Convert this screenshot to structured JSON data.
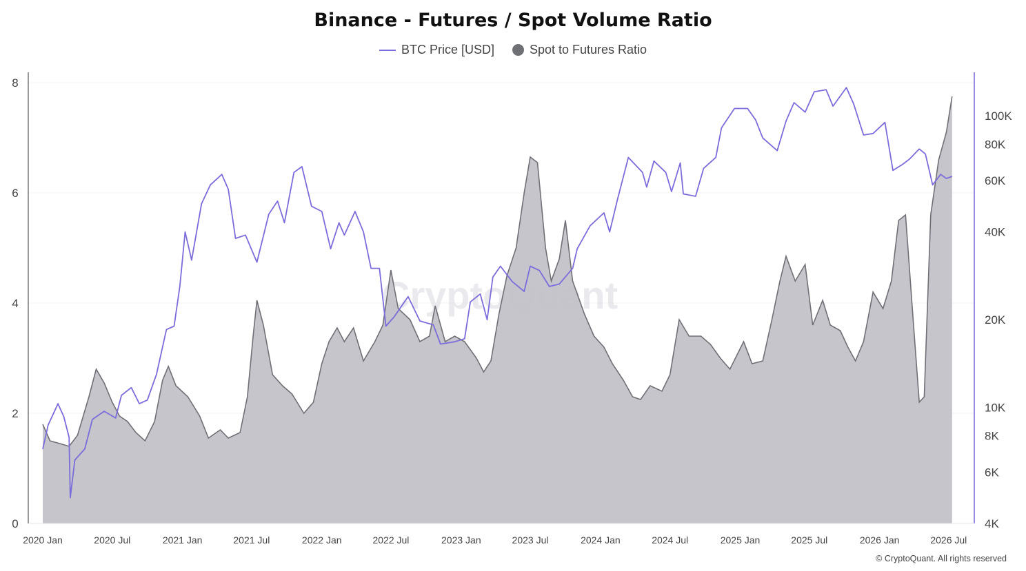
{
  "chart_data": {
    "type": "area",
    "title": "Binance - Futures / Spot Volume Ratio",
    "legend_position": "top-center",
    "grid": true,
    "watermark": "CryptoQuant",
    "credit": "© CryptoQuant. All rights reserved",
    "colors": {
      "price": "#7b6cdb",
      "ratio_fill": "#c3c2c8",
      "ratio_line": "#6f6f76"
    },
    "x_ticks": [
      "2020 Jan",
      "2020 Jul",
      "2021 Jan",
      "2021 Jul",
      "2022 Jan",
      "2022 Jul",
      "2023 Jan",
      "2023 Jul",
      "2024 Jan",
      "2024 Jul",
      "2025 Jan",
      "2025 Jul",
      "2026 Jan",
      "2026 Jul"
    ],
    "y_left": {
      "ticks": [
        "0",
        "2",
        "4",
        "6",
        "8"
      ],
      "range": [
        0,
        8
      ]
    },
    "y_right": {
      "scale": "log",
      "ticks": [
        4000,
        6000,
        8000,
        10000,
        20000,
        40000,
        60000,
        80000,
        100000
      ],
      "tick_labels": [
        "4K",
        "6K",
        "8K",
        "10K",
        "20K",
        "40K",
        "60K",
        "80K",
        "100K"
      ],
      "range": [
        4000,
        130000
      ]
    },
    "x_range": [
      "2020-01-01",
      "2026-08-01"
    ],
    "series": [
      {
        "name": "Spot to Futures Ratio",
        "axis": "left",
        "kind": "area",
        "points": [
          [
            "2020-01-01",
            1.8
          ],
          [
            "2020-01-20",
            1.5
          ],
          [
            "2020-02-15",
            1.45
          ],
          [
            "2020-03-10",
            1.4
          ],
          [
            "2020-04-01",
            1.6
          ],
          [
            "2020-05-01",
            2.3
          ],
          [
            "2020-05-20",
            2.8
          ],
          [
            "2020-06-10",
            2.55
          ],
          [
            "2020-07-01",
            2.2
          ],
          [
            "2020-07-20",
            1.95
          ],
          [
            "2020-08-10",
            1.85
          ],
          [
            "2020-09-01",
            1.65
          ],
          [
            "2020-09-25",
            1.5
          ],
          [
            "2020-10-20",
            1.85
          ],
          [
            "2020-11-10",
            2.6
          ],
          [
            "2020-11-25",
            2.85
          ],
          [
            "2020-12-15",
            2.5
          ],
          [
            "2021-01-15",
            2.3
          ],
          [
            "2021-02-15",
            1.95
          ],
          [
            "2021-03-10",
            1.55
          ],
          [
            "2021-04-10",
            1.7
          ],
          [
            "2021-05-01",
            1.55
          ],
          [
            "2021-06-01",
            1.65
          ],
          [
            "2021-06-20",
            2.3
          ],
          [
            "2021-07-05",
            3.4
          ],
          [
            "2021-07-15",
            4.05
          ],
          [
            "2021-08-01",
            3.6
          ],
          [
            "2021-08-25",
            2.7
          ],
          [
            "2021-09-20",
            2.5
          ],
          [
            "2021-10-15",
            2.35
          ],
          [
            "2021-11-15",
            2.0
          ],
          [
            "2021-12-10",
            2.2
          ],
          [
            "2022-01-01",
            2.9
          ],
          [
            "2022-01-20",
            3.3
          ],
          [
            "2022-02-10",
            3.55
          ],
          [
            "2022-03-01",
            3.3
          ],
          [
            "2022-03-25",
            3.55
          ],
          [
            "2022-04-20",
            2.95
          ],
          [
            "2022-05-20",
            3.3
          ],
          [
            "2022-06-10",
            3.6
          ],
          [
            "2022-07-01",
            4.6
          ],
          [
            "2022-07-20",
            3.9
          ],
          [
            "2022-08-20",
            3.7
          ],
          [
            "2022-09-15",
            3.3
          ],
          [
            "2022-10-10",
            3.4
          ],
          [
            "2022-10-25",
            3.95
          ],
          [
            "2022-11-20",
            3.3
          ],
          [
            "2022-12-15",
            3.4
          ],
          [
            "2023-01-10",
            3.3
          ],
          [
            "2023-02-10",
            3.0
          ],
          [
            "2023-03-01",
            2.75
          ],
          [
            "2023-03-20",
            2.95
          ],
          [
            "2023-04-10",
            3.8
          ],
          [
            "2023-05-01",
            4.5
          ],
          [
            "2023-05-25",
            5.0
          ],
          [
            "2023-06-15",
            6.0
          ],
          [
            "2023-07-01",
            6.65
          ],
          [
            "2023-07-20",
            6.55
          ],
          [
            "2023-08-10",
            5.0
          ],
          [
            "2023-08-25",
            4.4
          ],
          [
            "2023-09-15",
            4.8
          ],
          [
            "2023-10-01",
            5.5
          ],
          [
            "2023-10-20",
            4.4
          ],
          [
            "2023-11-20",
            3.8
          ],
          [
            "2023-12-15",
            3.4
          ],
          [
            "2024-01-10",
            3.2
          ],
          [
            "2024-02-01",
            2.9
          ],
          [
            "2024-03-01",
            2.6
          ],
          [
            "2024-03-25",
            2.3
          ],
          [
            "2024-04-15",
            2.25
          ],
          [
            "2024-05-10",
            2.5
          ],
          [
            "2024-06-10",
            2.4
          ],
          [
            "2024-07-01",
            2.7
          ],
          [
            "2024-07-25",
            3.7
          ],
          [
            "2024-08-20",
            3.4
          ],
          [
            "2024-09-20",
            3.4
          ],
          [
            "2024-10-15",
            3.25
          ],
          [
            "2024-11-10",
            3.0
          ],
          [
            "2024-12-05",
            2.8
          ],
          [
            "2025-01-10",
            3.3
          ],
          [
            "2025-02-01",
            2.9
          ],
          [
            "2025-03-01",
            2.95
          ],
          [
            "2025-03-25",
            3.7
          ],
          [
            "2025-04-15",
            4.4
          ],
          [
            "2025-05-01",
            4.85
          ],
          [
            "2025-05-25",
            4.4
          ],
          [
            "2025-06-20",
            4.7
          ],
          [
            "2025-07-10",
            3.6
          ],
          [
            "2025-08-05",
            4.05
          ],
          [
            "2025-08-25",
            3.6
          ],
          [
            "2025-09-20",
            3.5
          ],
          [
            "2025-10-10",
            3.2
          ],
          [
            "2025-10-30",
            2.95
          ],
          [
            "2025-11-20",
            3.3
          ],
          [
            "2025-12-15",
            4.2
          ],
          [
            "2026-01-10",
            3.9
          ],
          [
            "2026-02-01",
            4.4
          ],
          [
            "2026-02-20",
            5.5
          ],
          [
            "2026-03-10",
            5.6
          ],
          [
            "2026-04-01",
            3.5
          ],
          [
            "2026-04-15",
            2.2
          ],
          [
            "2026-04-28",
            2.3
          ],
          [
            "2026-05-15",
            5.6
          ],
          [
            "2026-06-05",
            6.6
          ],
          [
            "2026-06-25",
            7.1
          ],
          [
            "2026-07-10",
            7.75
          ]
        ]
      },
      {
        "name": "BTC Price [USD]",
        "axis": "right",
        "kind": "line",
        "points": [
          [
            "2020-01-01",
            7200
          ],
          [
            "2020-01-15",
            8700
          ],
          [
            "2020-02-10",
            10300
          ],
          [
            "2020-02-25",
            9300
          ],
          [
            "2020-03-10",
            7900
          ],
          [
            "2020-03-13",
            4900
          ],
          [
            "2020-03-25",
            6600
          ],
          [
            "2020-04-20",
            7200
          ],
          [
            "2020-05-10",
            9100
          ],
          [
            "2020-06-10",
            9700
          ],
          [
            "2020-07-10",
            9200
          ],
          [
            "2020-07-25",
            11000
          ],
          [
            "2020-08-20",
            11700
          ],
          [
            "2020-09-10",
            10300
          ],
          [
            "2020-10-01",
            10600
          ],
          [
            "2020-10-25",
            13000
          ],
          [
            "2020-11-20",
            18500
          ],
          [
            "2020-12-10",
            19000
          ],
          [
            "2020-12-25",
            26000
          ],
          [
            "2021-01-08",
            40000
          ],
          [
            "2021-01-25",
            32000
          ],
          [
            "2021-02-20",
            50000
          ],
          [
            "2021-03-15",
            58000
          ],
          [
            "2021-04-14",
            63000
          ],
          [
            "2021-05-01",
            56000
          ],
          [
            "2021-05-20",
            38000
          ],
          [
            "2021-06-15",
            39000
          ],
          [
            "2021-07-15",
            31500
          ],
          [
            "2021-08-15",
            46000
          ],
          [
            "2021-09-07",
            51000
          ],
          [
            "2021-09-25",
            43000
          ],
          [
            "2021-10-20",
            64000
          ],
          [
            "2021-11-10",
            67000
          ],
          [
            "2021-12-05",
            49000
          ],
          [
            "2022-01-01",
            47000
          ],
          [
            "2022-01-24",
            35000
          ],
          [
            "2022-02-15",
            43000
          ],
          [
            "2022-03-01",
            39000
          ],
          [
            "2022-03-29",
            47000
          ],
          [
            "2022-04-20",
            40000
          ],
          [
            "2022-05-10",
            30000
          ],
          [
            "2022-06-01",
            30000
          ],
          [
            "2022-06-18",
            19000
          ],
          [
            "2022-07-10",
            20500
          ],
          [
            "2022-08-15",
            24000
          ],
          [
            "2022-09-15",
            19800
          ],
          [
            "2022-10-20",
            19200
          ],
          [
            "2022-11-08",
            16500
          ],
          [
            "2022-12-15",
            16800
          ],
          [
            "2023-01-10",
            17200
          ],
          [
            "2023-01-25",
            23000
          ],
          [
            "2023-02-20",
            24500
          ],
          [
            "2023-03-10",
            20000
          ],
          [
            "2023-03-25",
            28000
          ],
          [
            "2023-04-14",
            30500
          ],
          [
            "2023-05-15",
            27000
          ],
          [
            "2023-06-15",
            25000
          ],
          [
            "2023-07-01",
            30500
          ],
          [
            "2023-07-25",
            29500
          ],
          [
            "2023-08-20",
            26000
          ],
          [
            "2023-09-15",
            26500
          ],
          [
            "2023-10-20",
            30000
          ],
          [
            "2023-11-01",
            35000
          ],
          [
            "2023-12-05",
            42000
          ],
          [
            "2024-01-10",
            46500
          ],
          [
            "2024-01-25",
            40000
          ],
          [
            "2024-02-15",
            52000
          ],
          [
            "2024-03-14",
            72000
          ],
          [
            "2024-04-20",
            64000
          ],
          [
            "2024-05-01",
            57000
          ],
          [
            "2024-05-20",
            70000
          ],
          [
            "2024-06-20",
            64000
          ],
          [
            "2024-07-05",
            55000
          ],
          [
            "2024-07-28",
            69000
          ],
          [
            "2024-08-05",
            54000
          ],
          [
            "2024-09-06",
            53000
          ],
          [
            "2024-09-27",
            66000
          ],
          [
            "2024-10-29",
            72000
          ],
          [
            "2024-11-13",
            91000
          ],
          [
            "2024-12-17",
            106000
          ],
          [
            "2025-01-20",
            106000
          ],
          [
            "2025-02-10",
            97000
          ],
          [
            "2025-03-01",
            84000
          ],
          [
            "2025-04-08",
            76000
          ],
          [
            "2025-05-01",
            96000
          ],
          [
            "2025-05-22",
            111000
          ],
          [
            "2025-06-20",
            103000
          ],
          [
            "2025-07-14",
            121000
          ],
          [
            "2025-08-14",
            123000
          ],
          [
            "2025-09-01",
            108000
          ],
          [
            "2025-10-06",
            125000
          ],
          [
            "2025-10-25",
            110000
          ],
          [
            "2025-11-20",
            86000
          ],
          [
            "2025-12-15",
            87000
          ],
          [
            "2026-01-15",
            95000
          ],
          [
            "2026-02-05",
            65000
          ],
          [
            "2026-03-01",
            68000
          ],
          [
            "2026-03-20",
            71000
          ],
          [
            "2026-04-15",
            77000
          ],
          [
            "2026-05-01",
            74000
          ],
          [
            "2026-05-20",
            58000
          ],
          [
            "2026-06-10",
            63000
          ],
          [
            "2026-06-25",
            61000
          ],
          [
            "2026-07-10",
            62000
          ]
        ]
      }
    ]
  }
}
